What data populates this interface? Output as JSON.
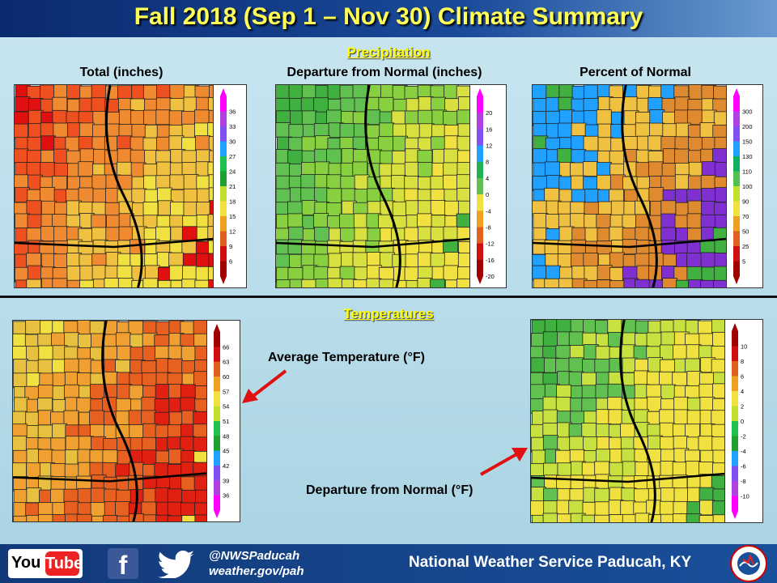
{
  "title": "Fall 2018 (Sep 1 – Nov 30) Climate Summary",
  "sections": {
    "precipitation": "Precipitation",
    "temperatures": "Temperatures"
  },
  "maps": {
    "precip_total": {
      "label": "Total (inches)",
      "palette": [
        "#e01010",
        "#ee5020",
        "#f08a30",
        "#f0c040",
        "#f0e040"
      ],
      "legend": {
        "ticks": [
          "36",
          "33",
          "30",
          "27",
          "24",
          "21",
          "18",
          "15",
          "12",
          "9",
          "6"
        ],
        "colors": [
          "#f0f",
          "#b040e0",
          "#8050f0",
          "#20a0ff",
          "#20c050",
          "#20a030",
          "#c0e030",
          "#f0e040",
          "#f0a020",
          "#e06020",
          "#d01010",
          "#a00000"
        ]
      }
    },
    "precip_departure": {
      "label": "Departure from Normal (inches)",
      "palette": [
        "#40b040",
        "#60c050",
        "#88d040",
        "#d8e040",
        "#f0e040"
      ],
      "legend": {
        "ticks": [
          "20",
          "16",
          "12",
          "8",
          "4",
          "0",
          "-4",
          "-8",
          "-12",
          "-16",
          "-20"
        ],
        "colors": [
          "#f0f",
          "#b040e0",
          "#8050f0",
          "#20a0ff",
          "#20b050",
          "#60c050",
          "#f0e040",
          "#f0a020",
          "#e06020",
          "#d01010",
          "#a00000"
        ]
      }
    },
    "precip_percent": {
      "label": "Percent of Normal",
      "palette": [
        "#40b040",
        "#20a0ff",
        "#f0c040",
        "#e08a30",
        "#8030d0"
      ],
      "legend": {
        "ticks": [
          "300",
          "200",
          "150",
          "130",
          "110",
          "100",
          "90",
          "70",
          "50",
          "25",
          "5"
        ],
        "colors": [
          "#f0f",
          "#b040e0",
          "#8050f0",
          "#20a0ff",
          "#10b060",
          "#50c050",
          "#c0e030",
          "#f0e040",
          "#f0a020",
          "#e06020",
          "#d01010",
          "#a00000"
        ]
      }
    },
    "temp_average": {
      "label": "Average Temperature (°F)",
      "palette": [
        "#f0e040",
        "#e8c040",
        "#f0a030",
        "#e86020",
        "#e02010"
      ],
      "legend": {
        "ticks": [
          "66",
          "63",
          "60",
          "57",
          "54",
          "51",
          "48",
          "45",
          "42",
          "39",
          "36"
        ],
        "colors": [
          "#a00000",
          "#d01010",
          "#e06020",
          "#f0a020",
          "#f0e040",
          "#c0e030",
          "#20c050",
          "#20a030",
          "#20a0ff",
          "#8050f0",
          "#b040e0",
          "#f0f"
        ]
      }
    },
    "temp_departure": {
      "label": "Departure from Normal (°F)",
      "palette": [
        "#40b040",
        "#60c050",
        "#c8e040",
        "#f0e040",
        "#f0e040"
      ],
      "legend": {
        "ticks": [
          "10",
          "8",
          "6",
          "4",
          "2",
          "0",
          "-2",
          "-4",
          "-6",
          "-8",
          "-10"
        ],
        "colors": [
          "#a00000",
          "#d01010",
          "#e06020",
          "#f0a020",
          "#f0e040",
          "#c0e030",
          "#20c050",
          "#20a030",
          "#20a0ff",
          "#8050f0",
          "#b040e0",
          "#f0f"
        ]
      }
    }
  },
  "footer": {
    "youtube_you": "You",
    "youtube_tube": "Tube",
    "facebook_glyph": "f",
    "handle": "@NWSPaducah",
    "website": "weather.gov/pah",
    "office": "National Weather Service Paducah, KY"
  },
  "colors": {
    "title": "#ffff55",
    "section": "#ffff00",
    "arrow": "#e01010",
    "footer": "#123a7a"
  }
}
